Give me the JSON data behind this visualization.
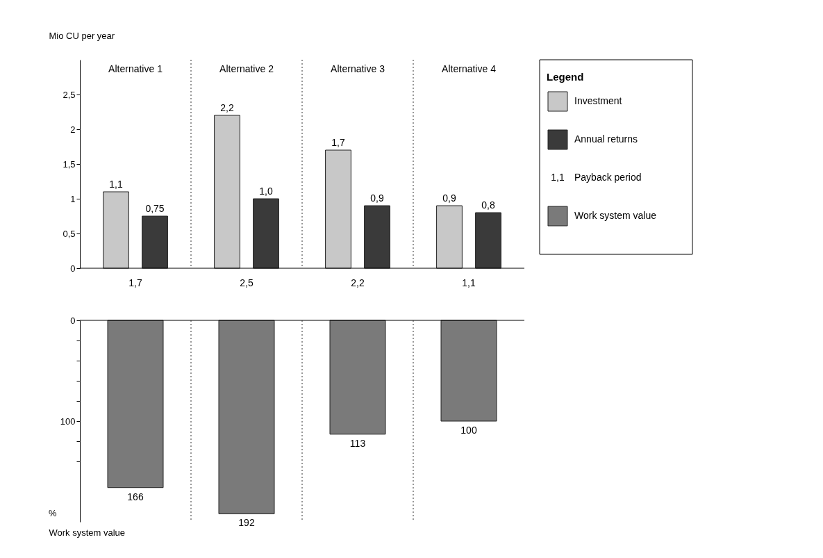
{
  "chart_data": [
    {
      "type": "bar",
      "ylabel": "Mio CU per year",
      "categories": [
        "Alternative 1",
        "Alternative 2",
        "Alternative 3",
        "Alternative 4"
      ],
      "series": [
        {
          "name": "Investment",
          "color": "#c8c8c8",
          "values": [
            1.1,
            2.2,
            1.7,
            0.9
          ],
          "value_labels": [
            "1,1",
            "2,2",
            "1,7",
            "0,9"
          ]
        },
        {
          "name": "Annual returns",
          "color": "#3a3a3a",
          "values": [
            0.75,
            1.0,
            0.9,
            0.8
          ],
          "value_labels": [
            "0,75",
            "1,0",
            "0,9",
            "0,8"
          ]
        }
      ],
      "ylim": [
        0,
        3
      ],
      "yticks": [
        0,
        {
          "value": 0.5,
          "label": "0,5"
        },
        1,
        {
          "value": 1.5,
          "label": "1,5"
        },
        2,
        {
          "value": 2.5,
          "label": "2,5"
        }
      ],
      "grid": "x",
      "legend": "right",
      "legend_title": "Legend",
      "annotations": [
        "1,7",
        "2,5",
        "2,2",
        "1,1",
        "Payback period"
      ]
    },
    {
      "type": "bar",
      "ylabel": "Work system value",
      "categories": [
        null,
        null,
        null,
        null
      ],
      "series": [
        {
          "name": "Work system value",
          "color": "#7a7a7a",
          "values": [
            166,
            192,
            113,
            100
          ]
        }
      ],
      "ylim": [
        200,
        0
      ],
      "yticks": [
        0,
        {
          "value": 20,
          "label": null
        },
        {
          "value": 40,
          "label": null
        },
        {
          "value": 60,
          "label": null
        },
        {
          "value": 80,
          "label": null
        },
        100,
        {
          "value": 120,
          "label": null
        },
        {
          "value": 140,
          "label": null
        }
      ],
      "grid": "x",
      "data_labels": true,
      "tick_labels": "y",
      "annotations": [
        "%"
      ]
    }
  ]
}
